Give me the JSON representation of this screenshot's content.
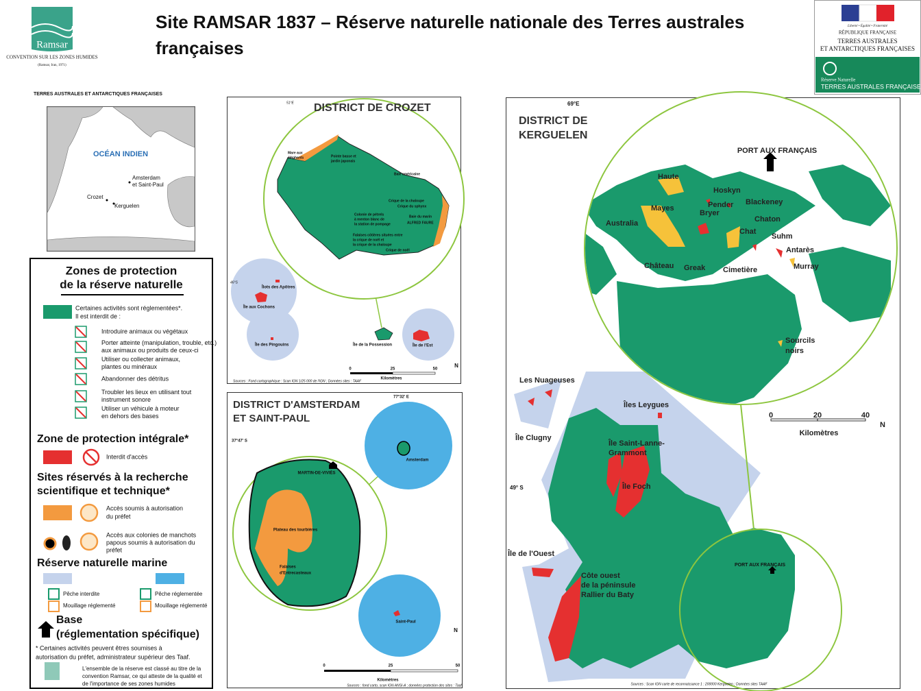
{
  "header": {
    "title_lines": [
      "Site RAMSAR 1837 – Réserve naturelle nationale des Terres australes",
      "françaises"
    ],
    "ramsar_logo": {
      "name": "Ramsar",
      "lines": [
        "CONVENTION SUR LES ZONES HUMIDES",
        "(Ramsar, Iran, 1971)"
      ]
    },
    "republic_logo": {
      "motto": "Liberté • Égalité • Fraternité",
      "lines": [
        "RÉPUBLIQUE FRANÇAISE",
        "TERRES AUSTRALES",
        "ET ANTARCTIQUES FRANÇAISES"
      ],
      "reserve_lines": [
        "Réserve Naturelle",
        "TERRES AUSTRALES FRANÇAISES"
      ]
    }
  },
  "overview_map": {
    "heading": "TERRES AUSTRALES ET ANTARCTIQUES FRANÇAISES",
    "ocean": "OCÉAN INDIEN",
    "labels": [
      "Amsterdam",
      "et Saint-Paul",
      "Crozet",
      "Kerguelen"
    ]
  },
  "legend": {
    "title_lines": [
      "Zones de protection",
      "de la réserve naturelle"
    ],
    "regulated_lines": [
      "Certaines activités sont réglementées*.",
      "Il est interdit de :"
    ],
    "prohibitions": [
      [
        "Introduire animaux ou végétaux"
      ],
      [
        "Porter atteinte (manipulation, trouble, etc.)",
        "aux animaux ou produits de ceux-ci"
      ],
      [
        "Utiliser ou collecter animaux,",
        "plantes ou minéraux"
      ],
      [
        "Abandonner des détritus"
      ],
      [
        "Troubler les lieux en utilisant tout",
        "instrument sonore"
      ],
      [
        "Utiliser un véhicule à moteur",
        "en dehors des bases"
      ]
    ],
    "integral": {
      "heading": "Zone de protection intégrale*",
      "item": "Interdit d'accès"
    },
    "research": {
      "heading_lines": [
        "Sites réservés à la recherche",
        " scientifique et technique*"
      ],
      "items": [
        [
          "Accès soumis à autorisation",
          "du préfet"
        ],
        [
          "Accès aux colonies de manchots",
          "papous soumis à autorisation du",
          "préfet"
        ]
      ]
    },
    "marine": {
      "heading": "Réserve naturelle marine",
      "left": [
        "Pêche interdite",
        "Mouillage réglementé"
      ],
      "right": [
        "Pêche réglementée",
        "Mouillage réglementé"
      ]
    },
    "base_lines": [
      "Base",
      "(réglementation spécifique)"
    ],
    "footnote_lines": [
      "* Certaines activités peuvent êtres soumises à",
      "autorisation du préfet, administrateur supérieur des Taaf."
    ],
    "ramsar_note_lines": [
      "L'ensemble de la réserve est classé au titre de la",
      "convention Ramsar, ce qui atteste de la qualité et",
      "de l'importance de ses zones humides"
    ]
  },
  "crozet": {
    "title": "DISTRICT DE CROZET",
    "longitude": "51°E",
    "latitude": "46°S",
    "sites": [
      "Mare aux",
      "éléphants",
      "Pointe basse et",
      "jardin japonais",
      "Baie américaine",
      "Crique de la chaloupe",
      "Crique du sphynx",
      "Baie du marin",
      "ALFRED FAURE",
      "Colonie de pétrels",
      "à menton blanc de",
      "la station de pompage",
      "Falaises côtières situées entre",
      "la crique de noël et",
      "la crique de la chaloupe",
      "Crique de noël"
    ],
    "islands": [
      "Îlots des Apôtres",
      "Île aux Cochons",
      "Île des Pingouins",
      "Île de la Possession",
      "Île de l'Est"
    ],
    "scale": {
      "ticks": [
        0,
        25,
        50
      ],
      "unit": "Kilomètres"
    },
    "north": "N",
    "source": "Sources : Fond cartographique : Scan IGN 1/25 000 de l'IGN ; Données sites : TAAF"
  },
  "amsterdam": {
    "title_lines": [
      "DISTRICT D'AMSTERDAM",
      "ET SAINT-PAUL"
    ],
    "longitude": "77°32' E",
    "latitude": "37°47' S",
    "labels": [
      "MARTIN-DE-VIVIÈS",
      "Plateau des tourbières",
      "Falaises",
      "d'Entrecasteaux",
      "Amsterdam",
      "Saint-Paul"
    ],
    "scale": {
      "ticks": [
        0,
        25,
        50
      ],
      "unit": "Kilomètres"
    },
    "north": "N",
    "source": "Sources : fond carto, scan IGN ANSI-A ; données protection des sites : Taaf"
  },
  "kerguelen": {
    "title_lines": [
      "DISTRICT DE",
      "KERGUELEN"
    ],
    "longitude": "69°E",
    "latitude": "49° S",
    "inset_labels": [
      "PORT AUX FRANÇAIS",
      "Haute",
      "Hoskyn",
      "Pender",
      "Blackeney",
      "Bryer",
      "Mayes",
      "Australia",
      "Chaton",
      "Chat",
      "Suhm",
      "Antarès",
      "Murray",
      "Château",
      "Greak",
      "Cimetière",
      "Sourcils",
      "noirs"
    ],
    "labels": [
      "Les Nuageuses",
      "Île Clugny",
      "Îles Leygues",
      "Île Saint-Lanne-",
      "Grammont",
      "Île Foch",
      "Île de l'Ouest",
      "Côte ouest",
      "de la péninsule",
      "Rallier du Baty",
      "PORT AUX FRANÇAIS"
    ],
    "scale": {
      "ticks": [
        0,
        20,
        40
      ],
      "unit": "Kilomètres"
    },
    "north": "N",
    "source": "Sources : Scan IGN carte de reconnaissance 1 : 200000 Kerguelen ; Données sites TAAF"
  }
}
